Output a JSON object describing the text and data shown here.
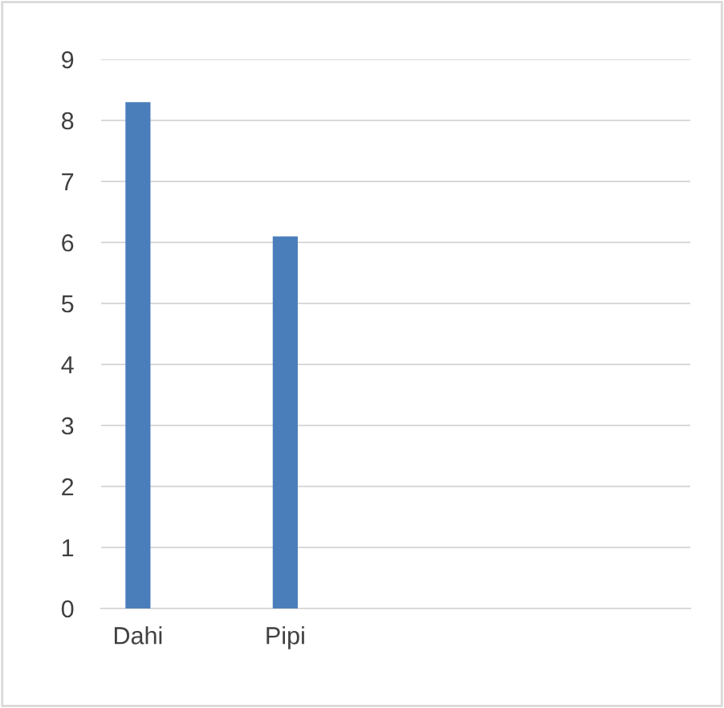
{
  "chart_data": {
    "type": "bar",
    "categories": [
      "Dahi",
      "Pipi",
      null,
      null
    ],
    "values": [
      8.3,
      6.1,
      null,
      null
    ],
    "color": "#4a7ebb",
    "ylim": [
      0,
      9
    ],
    "yticks": [
      0,
      1,
      2,
      3,
      4,
      5,
      6,
      7,
      8,
      9
    ],
    "grid": "y"
  }
}
